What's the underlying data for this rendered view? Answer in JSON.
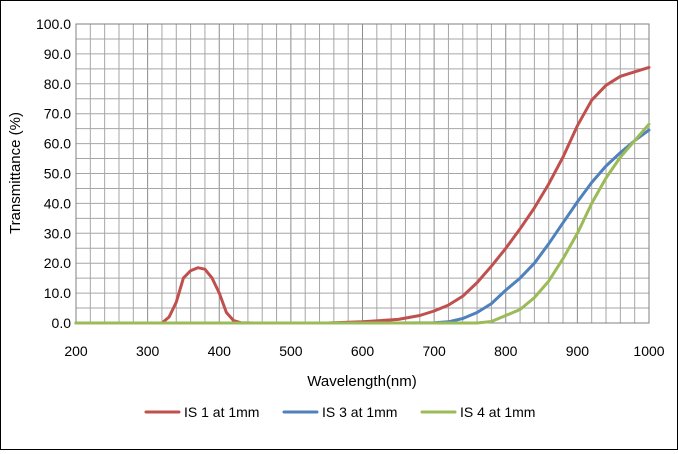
{
  "chart_data": {
    "type": "line",
    "title": "",
    "xlabel": "Wavelength(nm)",
    "ylabel": "Transmittance (%)",
    "xlim": [
      200,
      1000
    ],
    "ylim": [
      0,
      100
    ],
    "x_ticks": [
      "200",
      "300",
      "400",
      "500",
      "600",
      "700",
      "800",
      "900",
      "1000"
    ],
    "y_ticks": [
      "0.0",
      "10.0",
      "20.0",
      "30.0",
      "40.0",
      "50.0",
      "60.0",
      "70.0",
      "80.0",
      "90.0",
      "100.0"
    ],
    "grid": true,
    "legend_position": "bottom",
    "series": [
      {
        "name": "IS 1 at 1mm",
        "color": "#C0504D",
        "x": [
          200,
          300,
          320,
          330,
          340,
          350,
          360,
          370,
          380,
          390,
          400,
          410,
          420,
          430,
          450,
          500,
          550,
          600,
          650,
          680,
          700,
          720,
          740,
          760,
          780,
          800,
          820,
          840,
          860,
          880,
          900,
          920,
          940,
          960,
          980,
          1000
        ],
        "y": [
          0,
          0,
          0,
          2,
          7,
          15,
          17.5,
          18.5,
          18,
          15,
          10,
          3.5,
          0.8,
          0.1,
          0,
          0,
          0,
          0.4,
          1.2,
          2.5,
          4,
          6,
          9,
          13.5,
          19,
          25,
          31.5,
          38.5,
          46.5,
          55.5,
          66,
          74.5,
          79.5,
          82.5,
          84,
          85.5
        ]
      },
      {
        "name": "IS 3 at 1mm",
        "color": "#4F81BD",
        "x": [
          200,
          300,
          400,
          500,
          600,
          650,
          700,
          720,
          740,
          760,
          780,
          800,
          820,
          840,
          860,
          880,
          900,
          920,
          940,
          960,
          980,
          1000
        ],
        "y": [
          0,
          0,
          0,
          0,
          0,
          0,
          0.1,
          0.4,
          1.5,
          3.5,
          6.5,
          11,
          15,
          20,
          26.5,
          33.5,
          40.5,
          47,
          52.5,
          57,
          61,
          64.5
        ]
      },
      {
        "name": "IS 4 at 1mm",
        "color": "#9BBB59",
        "x": [
          200,
          300,
          400,
          500,
          600,
          700,
          760,
          780,
          800,
          820,
          840,
          860,
          880,
          900,
          920,
          940,
          960,
          980,
          1000
        ],
        "y": [
          0,
          0,
          0,
          0,
          0,
          0,
          0,
          0.5,
          2.5,
          4.5,
          8.5,
          14,
          21.5,
          30,
          40,
          48.5,
          55.5,
          61,
          66.5
        ]
      }
    ]
  }
}
